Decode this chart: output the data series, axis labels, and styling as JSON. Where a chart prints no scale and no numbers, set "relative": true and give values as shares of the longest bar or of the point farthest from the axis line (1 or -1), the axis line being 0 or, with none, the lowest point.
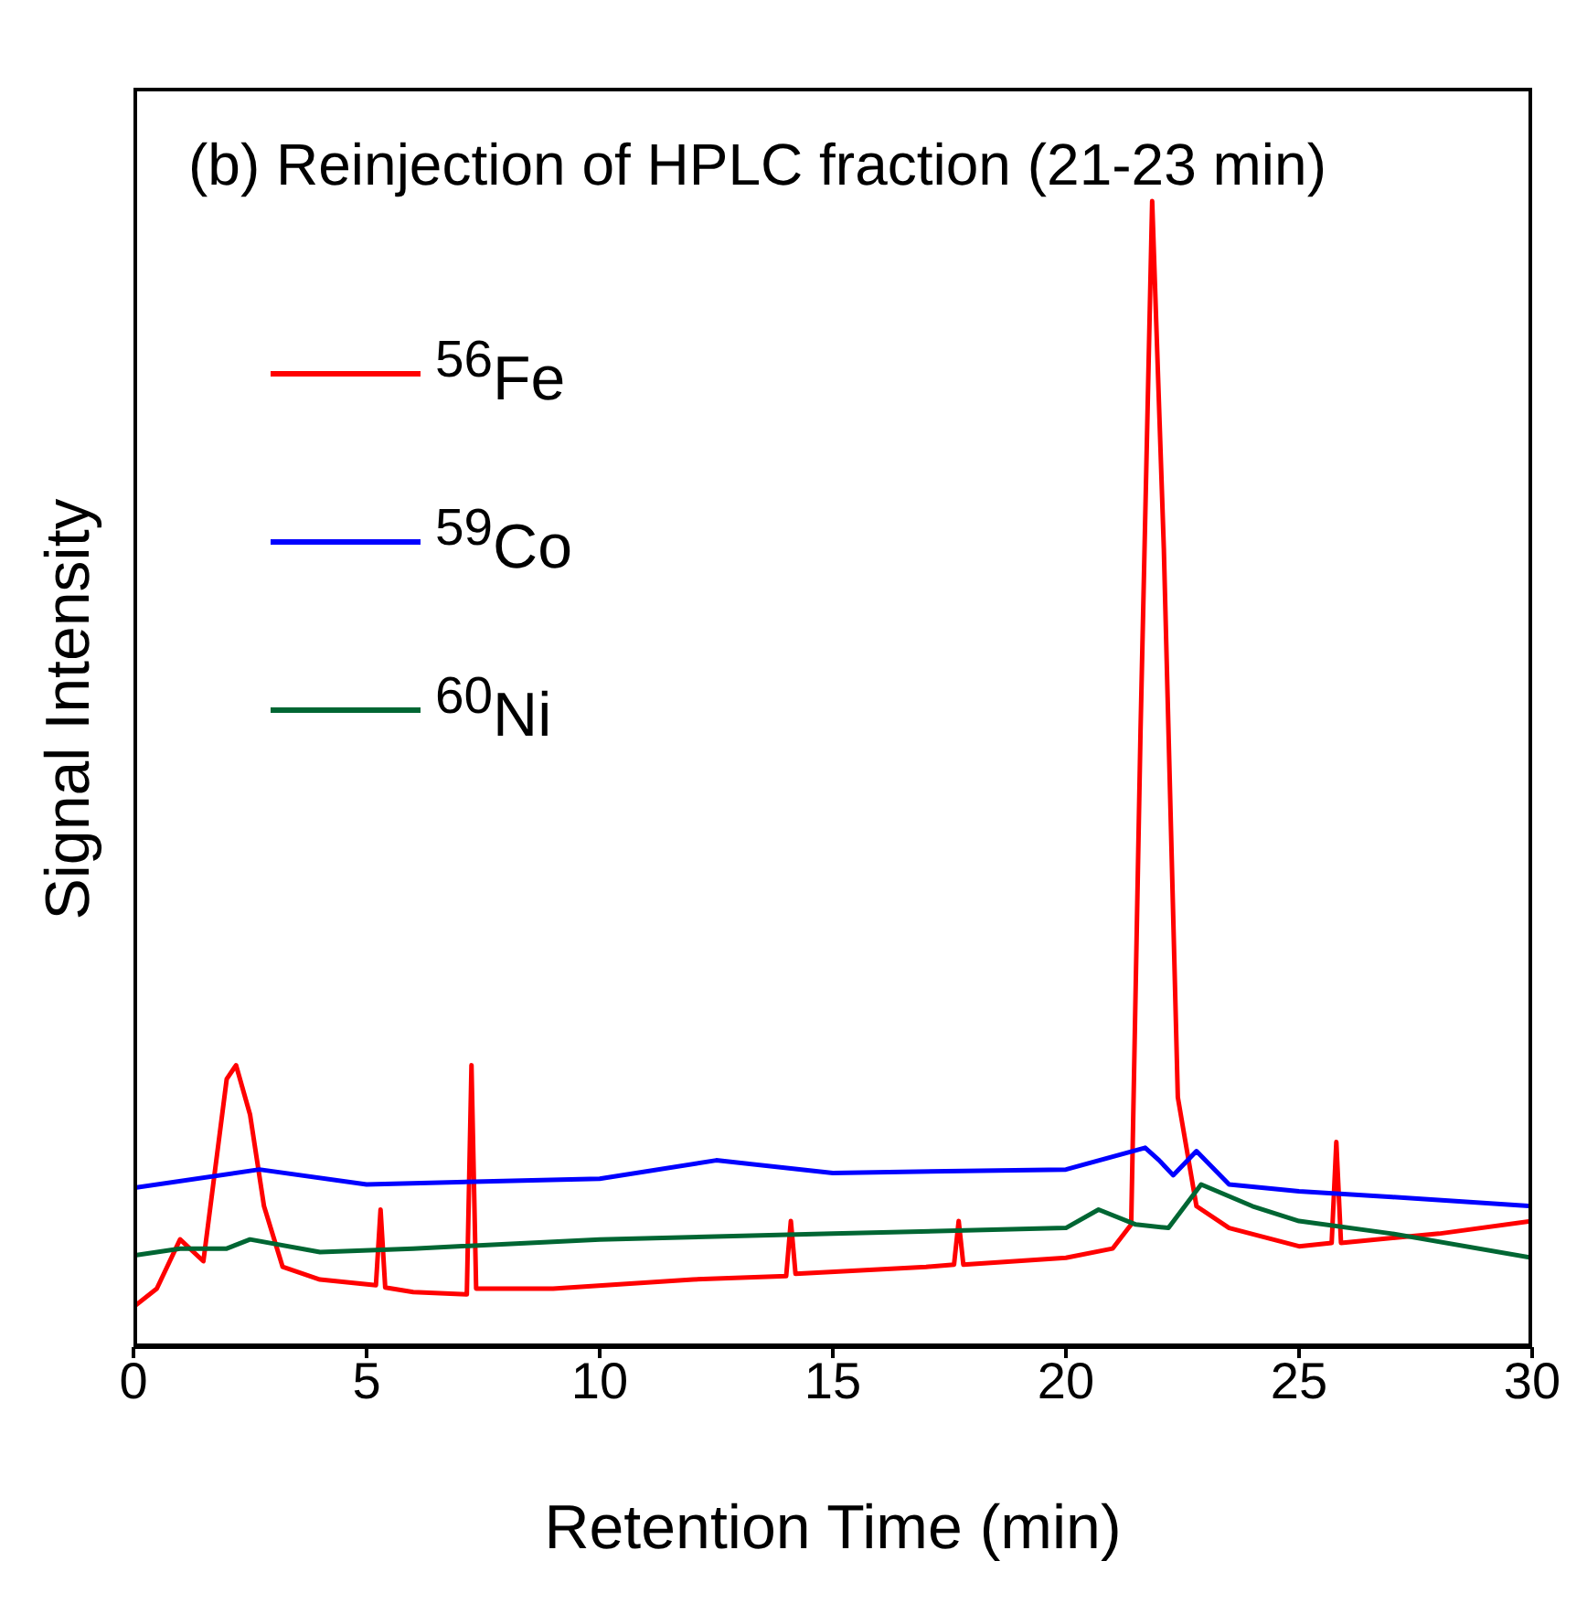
{
  "chart_data": {
    "type": "line",
    "title": "(b) Reinjection of HPLC fraction (21-23 min)",
    "xlabel": "Retention Time (min)",
    "ylabel": "Signal Intensity",
    "relative": true,
    "xlim": [
      0,
      30
    ],
    "xticks": [
      0,
      5,
      10,
      15,
      20,
      25,
      30
    ],
    "legend": "top left",
    "marker": "none",
    "line_style": "solid",
    "series": [
      {
        "name": "$^{56}$Fe",
        "color": "#ff0000",
        "x": [
          0,
          0.5,
          1.0,
          1.5,
          2.0,
          2.2,
          2.5,
          2.8,
          3.2,
          4,
          5.2,
          5.3,
          5.4,
          6,
          7.15,
          7.25,
          7.35,
          9,
          12,
          14,
          14.1,
          14.2,
          17,
          17.6,
          17.7,
          17.8,
          20,
          21,
          21.4,
          21.6,
          21.85,
          22.1,
          22.4,
          22.8,
          23.5,
          25,
          25.7,
          25.8,
          25.9,
          28,
          30
        ],
        "values": [
          0.035,
          0.051,
          0.094,
          0.075,
          0.234,
          0.246,
          0.203,
          0.123,
          0.07,
          0.059,
          0.054,
          0.12,
          0.052,
          0.048,
          0.046,
          0.246,
          0.051,
          0.051,
          0.059,
          0.062,
          0.11,
          0.064,
          0.07,
          0.072,
          0.11,
          0.072,
          0.078,
          0.086,
          0.107,
          0.537,
          1.0,
          0.697,
          0.218,
          0.123,
          0.104,
          0.088,
          0.091,
          0.179,
          0.091,
          0.099,
          0.11
        ]
      },
      {
        "name": "$^{59}$Co",
        "color": "#0000ff",
        "x": [
          0,
          2.7,
          5,
          10,
          12.5,
          15,
          20,
          21.7,
          22,
          22.3,
          22.8,
          23.5,
          25,
          27,
          30
        ],
        "values": [
          0.139,
          0.155,
          0.142,
          0.147,
          0.163,
          0.152,
          0.155,
          0.174,
          0.163,
          0.15,
          0.171,
          0.142,
          0.136,
          0.131,
          0.123
        ]
      },
      {
        "name": "$^{60}$Ni",
        "color": "#006633",
        "x": [
          0,
          1,
          2,
          2.5,
          4,
          6,
          10,
          15,
          20,
          20.7,
          21.5,
          22.2,
          22.9,
          24,
          25,
          27,
          30
        ],
        "values": [
          0.08,
          0.086,
          0.086,
          0.094,
          0.083,
          0.086,
          0.094,
          0.099,
          0.104,
          0.12,
          0.107,
          0.104,
          0.142,
          0.123,
          0.11,
          0.099,
          0.078
        ]
      }
    ]
  }
}
